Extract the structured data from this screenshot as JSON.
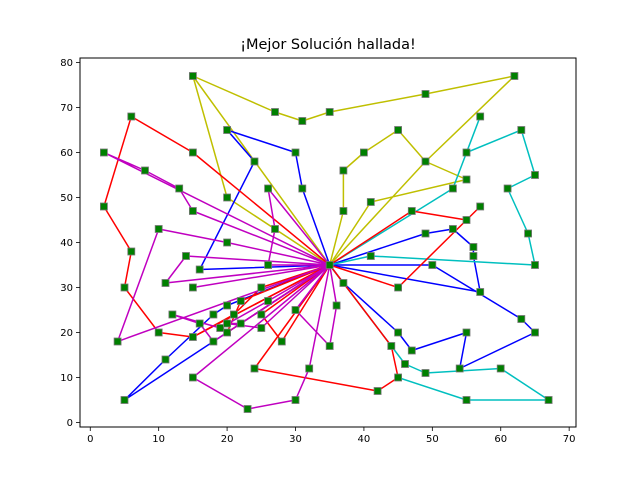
{
  "chart_data": {
    "type": "line",
    "title": "¡Mejor Solución hallada!",
    "xlabel": "",
    "ylabel": "",
    "xlim": [
      -1.5,
      71
    ],
    "ylim": [
      -1,
      81
    ],
    "xticks": [
      0,
      10,
      20,
      30,
      40,
      50,
      60,
      70
    ],
    "yticks": [
      0,
      10,
      20,
      30,
      40,
      50,
      60,
      70,
      80
    ],
    "grid": false,
    "depot": [
      35,
      35
    ],
    "marker": {
      "face": "#008000",
      "edge": "#777777"
    },
    "series": [
      {
        "color": "#bfbf00",
        "points": [
          [
            35,
            35
          ],
          [
            15,
            77
          ],
          [
            27,
            69
          ],
          [
            31,
            67
          ],
          [
            35,
            69
          ],
          [
            49,
            73
          ],
          [
            62,
            77
          ],
          [
            49,
            58
          ],
          [
            45,
            65
          ],
          [
            40,
            60
          ],
          [
            37,
            56
          ],
          [
            37,
            47
          ],
          [
            35,
            35
          ]
        ]
      },
      {
        "color": "#bfbf00",
        "points": [
          [
            35,
            35
          ],
          [
            41,
            49
          ],
          [
            55,
            54
          ],
          [
            49,
            58
          ],
          [
            35,
            35
          ]
        ]
      },
      {
        "color": "#bfbf00",
        "points": [
          [
            35,
            35
          ],
          [
            20,
            50
          ],
          [
            15,
            77
          ]
        ]
      },
      {
        "color": "#0000ff",
        "points": [
          [
            35,
            35
          ],
          [
            31,
            52
          ],
          [
            30,
            60
          ],
          [
            20,
            65
          ],
          [
            24,
            58
          ],
          [
            16,
            34
          ],
          [
            35,
            35
          ]
        ]
      },
      {
        "color": "#0000ff",
        "points": [
          [
            35,
            35
          ],
          [
            49,
            42
          ],
          [
            53,
            43
          ],
          [
            56,
            39
          ],
          [
            56,
            37
          ],
          [
            57,
            29
          ],
          [
            35,
            35
          ]
        ]
      },
      {
        "color": "#0000ff",
        "points": [
          [
            35,
            35
          ],
          [
            50,
            35
          ],
          [
            63,
            23
          ],
          [
            65,
            20
          ],
          [
            54,
            12
          ],
          [
            55,
            20
          ],
          [
            47,
            16
          ],
          [
            45,
            20
          ],
          [
            37,
            31
          ],
          [
            35,
            35
          ]
        ]
      },
      {
        "color": "#0000ff",
        "points": [
          [
            35,
            35
          ],
          [
            20,
            26
          ],
          [
            18,
            24
          ],
          [
            11,
            14
          ],
          [
            5,
            5
          ],
          [
            35,
            35
          ]
        ]
      },
      {
        "color": "#00bfbf",
        "points": [
          [
            35,
            35
          ],
          [
            53,
            52
          ],
          [
            57,
            68
          ],
          [
            55,
            60
          ],
          [
            63,
            65
          ],
          [
            65,
            55
          ],
          [
            61,
            52
          ],
          [
            64,
            42
          ],
          [
            65,
            35
          ],
          [
            41,
            37
          ],
          [
            35,
            35
          ]
        ]
      },
      {
        "color": "#00bfbf",
        "points": [
          [
            35,
            35
          ],
          [
            44,
            17
          ],
          [
            46,
            13
          ],
          [
            49,
            11
          ],
          [
            60,
            12
          ],
          [
            67,
            5
          ],
          [
            55,
            5
          ],
          [
            45,
            10
          ]
        ]
      },
      {
        "color": "#ff0000",
        "points": [
          [
            35,
            35
          ],
          [
            15,
            60
          ],
          [
            6,
            68
          ],
          [
            2,
            48
          ],
          [
            6,
            38
          ],
          [
            5,
            30
          ],
          [
            10,
            20
          ],
          [
            15,
            19
          ],
          [
            35,
            35
          ]
        ]
      },
      {
        "color": "#ff0000",
        "points": [
          [
            35,
            35
          ],
          [
            47,
            47
          ],
          [
            55,
            45
          ],
          [
            57,
            48
          ],
          [
            45,
            30
          ],
          [
            35,
            35
          ]
        ]
      },
      {
        "color": "#ff0000",
        "points": [
          [
            35,
            35
          ],
          [
            37,
            31
          ],
          [
            44,
            17
          ],
          [
            45,
            10
          ],
          [
            42,
            7
          ],
          [
            24,
            12
          ],
          [
            35,
            35
          ]
        ]
      },
      {
        "color": "#ff0000",
        "points": [
          [
            35,
            35
          ],
          [
            25,
            30
          ],
          [
            21,
            24
          ],
          [
            15,
            19
          ],
          [
            35,
            35
          ]
        ]
      },
      {
        "color": "#ff0000",
        "points": [
          [
            35,
            35
          ],
          [
            22,
            27
          ],
          [
            20,
            20
          ],
          [
            35,
            35
          ]
        ]
      },
      {
        "color": "#ff0000",
        "points": [
          [
            35,
            35
          ],
          [
            25,
            24
          ],
          [
            28,
            18
          ],
          [
            35,
            35
          ]
        ]
      },
      {
        "color": "#c000c0",
        "points": [
          [
            35,
            35
          ],
          [
            2,
            60
          ],
          [
            8,
            56
          ],
          [
            13,
            52
          ],
          [
            15,
            47
          ],
          [
            35,
            35
          ]
        ]
      },
      {
        "color": "#c000c0",
        "points": [
          [
            35,
            35
          ],
          [
            4,
            18
          ],
          [
            10,
            43
          ],
          [
            20,
            40
          ],
          [
            35,
            35
          ]
        ]
      },
      {
        "color": "#c000c0",
        "points": [
          [
            35,
            35
          ],
          [
            14,
            37
          ],
          [
            11,
            31
          ],
          [
            35,
            35
          ]
        ]
      },
      {
        "color": "#c000c0",
        "points": [
          [
            35,
            35
          ],
          [
            26,
            52
          ],
          [
            27,
            43
          ],
          [
            26,
            35
          ],
          [
            35,
            35
          ]
        ]
      },
      {
        "color": "#c000c0",
        "points": [
          [
            35,
            35
          ],
          [
            15,
            30
          ],
          [
            35,
            35
          ]
        ]
      },
      {
        "color": "#c000c0",
        "points": [
          [
            35,
            35
          ],
          [
            26,
            27
          ],
          [
            19,
            21
          ],
          [
            12,
            24
          ],
          [
            16,
            22
          ],
          [
            18,
            18
          ],
          [
            35,
            35
          ]
        ]
      },
      {
        "color": "#c000c0",
        "points": [
          [
            35,
            35
          ],
          [
            22,
            22
          ],
          [
            20,
            22
          ],
          [
            25,
            21
          ],
          [
            35,
            35
          ]
        ]
      },
      {
        "color": "#c000c0",
        "points": [
          [
            35,
            35
          ],
          [
            30,
            25
          ],
          [
            35,
            17
          ],
          [
            36,
            26
          ],
          [
            35,
            35
          ]
        ]
      },
      {
        "color": "#c000c0",
        "points": [
          [
            35,
            35
          ],
          [
            32,
            12
          ],
          [
            30,
            5
          ],
          [
            23,
            3
          ],
          [
            15,
            10
          ],
          [
            35,
            35
          ]
        ]
      }
    ]
  }
}
